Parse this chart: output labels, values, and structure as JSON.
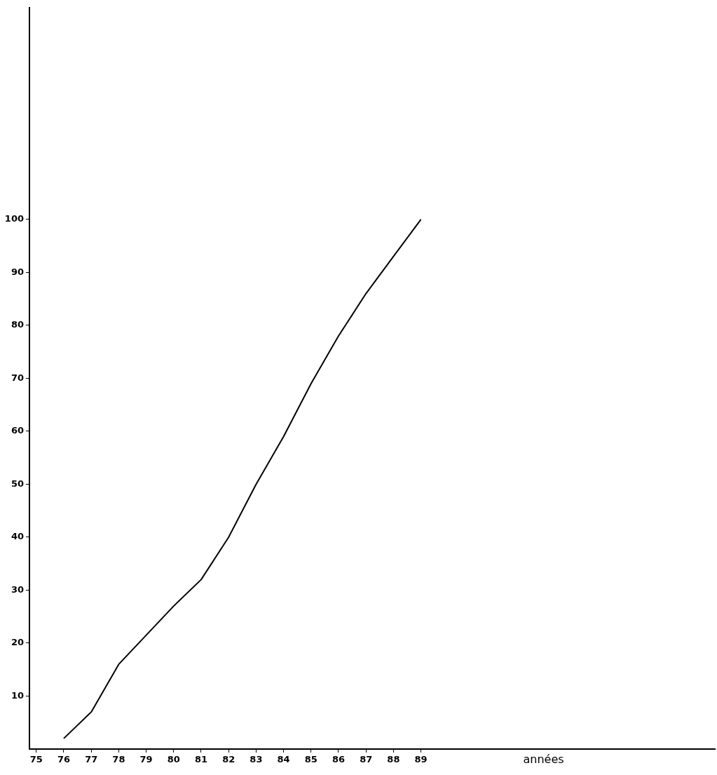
{
  "chart_data": {
    "type": "line",
    "xlabel": "années",
    "x": [
      76,
      77,
      78,
      79,
      80,
      81,
      82,
      83,
      84,
      85,
      86,
      87,
      88,
      89
    ],
    "series": [
      {
        "color": "#000000",
        "values": [
          2,
          7,
          16,
          21.5,
          27,
          32,
          40,
          50,
          59,
          69,
          78,
          86,
          93,
          100
        ]
      }
    ],
    "xlim": [
      74.75,
      99.7
    ],
    "xticks": [
      75,
      76,
      77,
      78,
      79,
      80,
      81,
      82,
      83,
      84,
      85,
      86,
      87,
      88,
      89
    ],
    "ylim": [
      0,
      140
    ],
    "yticks": [
      10,
      20,
      30,
      40,
      50,
      60,
      70,
      80,
      90,
      100
    ],
    "grid": false,
    "legend": false,
    "marker": "none",
    "line_style": "solid"
  }
}
